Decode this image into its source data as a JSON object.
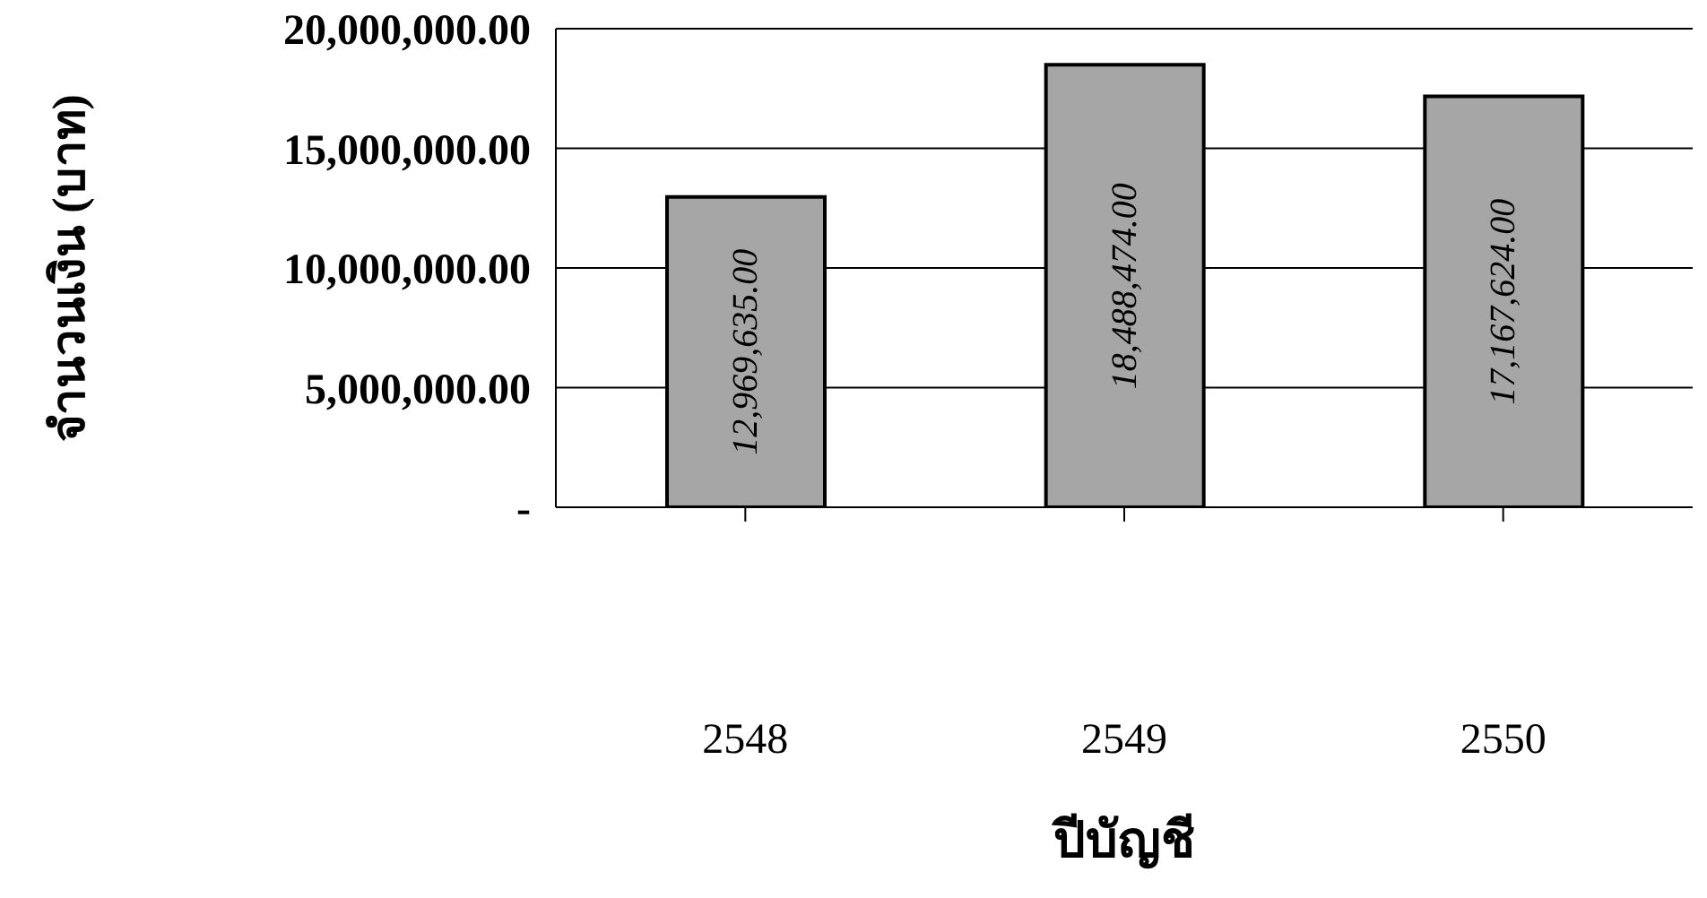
{
  "chart_data": {
    "type": "bar",
    "xlabel": "ปีบัญชี",
    "ylabel": "จำนวนเงิน (บาท)",
    "categories": [
      "2548",
      "2549",
      "2550"
    ],
    "values": [
      12969635,
      18488474,
      17167624
    ],
    "value_labels": [
      "12,969,635.00",
      "18,488,474.00",
      "17,167,624.00"
    ],
    "color": "#a6a6a6",
    "ylim": [
      0,
      20000000
    ],
    "yticks": [
      {
        "value": 0,
        "label": "-"
      },
      {
        "value": 5000000,
        "label": "5,000,000.00"
      },
      {
        "value": 10000000,
        "label": "10,000,000.00"
      },
      {
        "value": 15000000,
        "label": "15,000,000.00"
      },
      {
        "value": 20000000,
        "label": "20,000,000.00"
      }
    ],
    "grid": "y"
  }
}
